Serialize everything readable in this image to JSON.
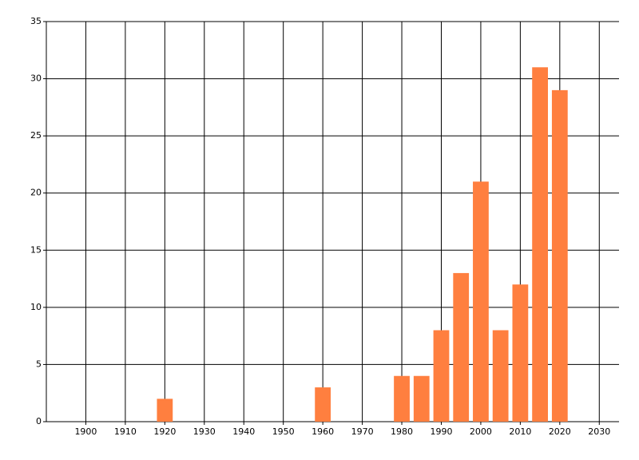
{
  "chart_data": {
    "type": "bar",
    "x": [
      1920,
      1960,
      1980,
      1985,
      1990,
      1995,
      2000,
      2005,
      2010,
      2015,
      2020
    ],
    "values": [
      2,
      3,
      4,
      4,
      8,
      13,
      21,
      8,
      12,
      31,
      29
    ],
    "color": "#ff7f3f",
    "xlim": [
      1890,
      2035
    ],
    "xticks": [
      1900,
      1910,
      1920,
      1930,
      1940,
      1950,
      1960,
      1970,
      1980,
      1990,
      2000,
      2010,
      2020,
      2030
    ],
    "ylim": [
      0,
      35
    ],
    "yticks": [
      0,
      5,
      10,
      15,
      20,
      25,
      30,
      35
    ],
    "grid": true
  }
}
